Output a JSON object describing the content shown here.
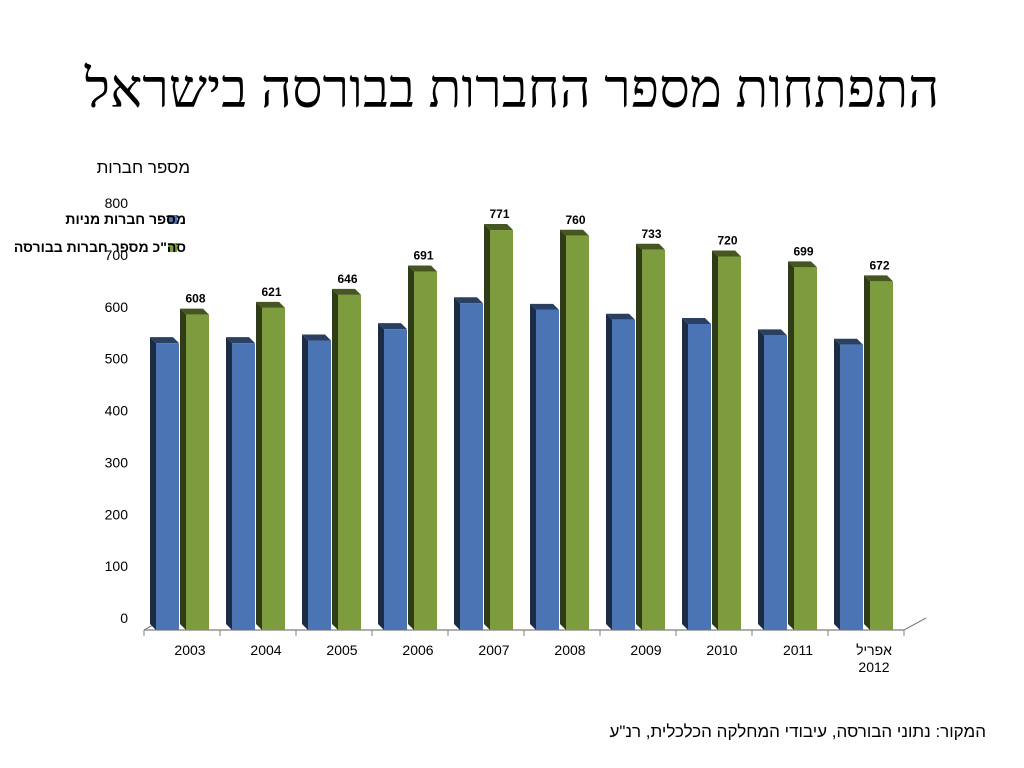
{
  "title": "התפתחות מספר החברות בבורסה בישראל",
  "source": "המקור: נתוני הבורסה, עיבודי המחלקה הכלכלית, רנ\"ע",
  "chart_data": {
    "type": "bar",
    "title": "התפתחות מספר החברות בבורסה בישראל",
    "ylabel": "מספר חברות",
    "xlabel": "",
    "categories": [
      "2003",
      "2004",
      "2005",
      "2006",
      "2007",
      "2008",
      "2009",
      "2010",
      "2011",
      "אפריל 2012"
    ],
    "yticks": [
      0,
      100,
      200,
      300,
      400,
      500,
      600,
      700,
      800
    ],
    "ylim": [
      0,
      800
    ],
    "legend_position": "top-left",
    "grid": false,
    "series": [
      {
        "name": "מספר חברות מניות",
        "color": "#4a74b3",
        "values": [
          553,
          553,
          558,
          580,
          630,
          617,
          598,
          590,
          568,
          550
        ],
        "show_labels": false
      },
      {
        "name": "סה\"כ מספר חברות בבורסה",
        "color": "#7d9c3d",
        "values": [
          608,
          621,
          646,
          691,
          771,
          760,
          733,
          720,
          699,
          672
        ],
        "show_labels": true
      }
    ]
  }
}
